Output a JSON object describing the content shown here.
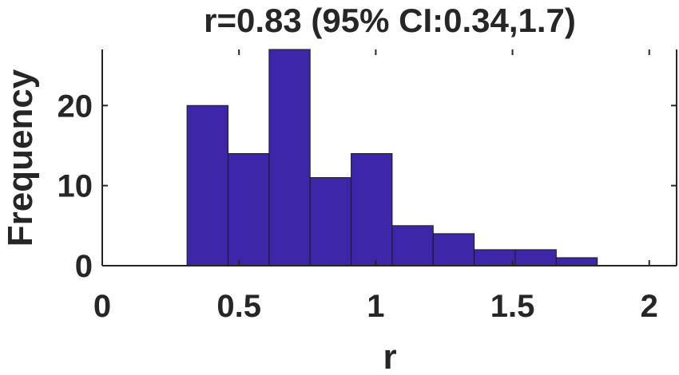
{
  "chart_data": {
    "type": "bar",
    "title": "r=0.83 (95% CI:0.34,1.7)",
    "xlabel": "r",
    "ylabel": "Frequency",
    "xlim": [
      0,
      2.1
    ],
    "ylim": [
      0,
      27
    ],
    "xticks": [
      0,
      0.5,
      1,
      1.5,
      2
    ],
    "xtick_labels": [
      "0",
      "0.5",
      "1",
      "1.5",
      "2"
    ],
    "yticks": [
      0,
      10,
      20
    ],
    "ytick_labels": [
      "0",
      "10",
      "20"
    ],
    "grid": false,
    "bins": [
      {
        "start": 0.31,
        "end": 0.46,
        "count": 20
      },
      {
        "start": 0.46,
        "end": 0.61,
        "count": 14
      },
      {
        "start": 0.61,
        "end": 0.76,
        "count": 27
      },
      {
        "start": 0.76,
        "end": 0.91,
        "count": 11
      },
      {
        "start": 0.91,
        "end": 1.06,
        "count": 14
      },
      {
        "start": 1.06,
        "end": 1.21,
        "count": 5
      },
      {
        "start": 1.21,
        "end": 1.36,
        "count": 4
      },
      {
        "start": 1.36,
        "end": 1.51,
        "count": 2
      },
      {
        "start": 1.51,
        "end": 1.66,
        "count": 2
      },
      {
        "start": 1.66,
        "end": 1.81,
        "count": 1
      }
    ],
    "colors": {
      "bar_fill": "#3d26a8",
      "bar_edge": "#1a1a1a",
      "axis": "#262626"
    }
  }
}
